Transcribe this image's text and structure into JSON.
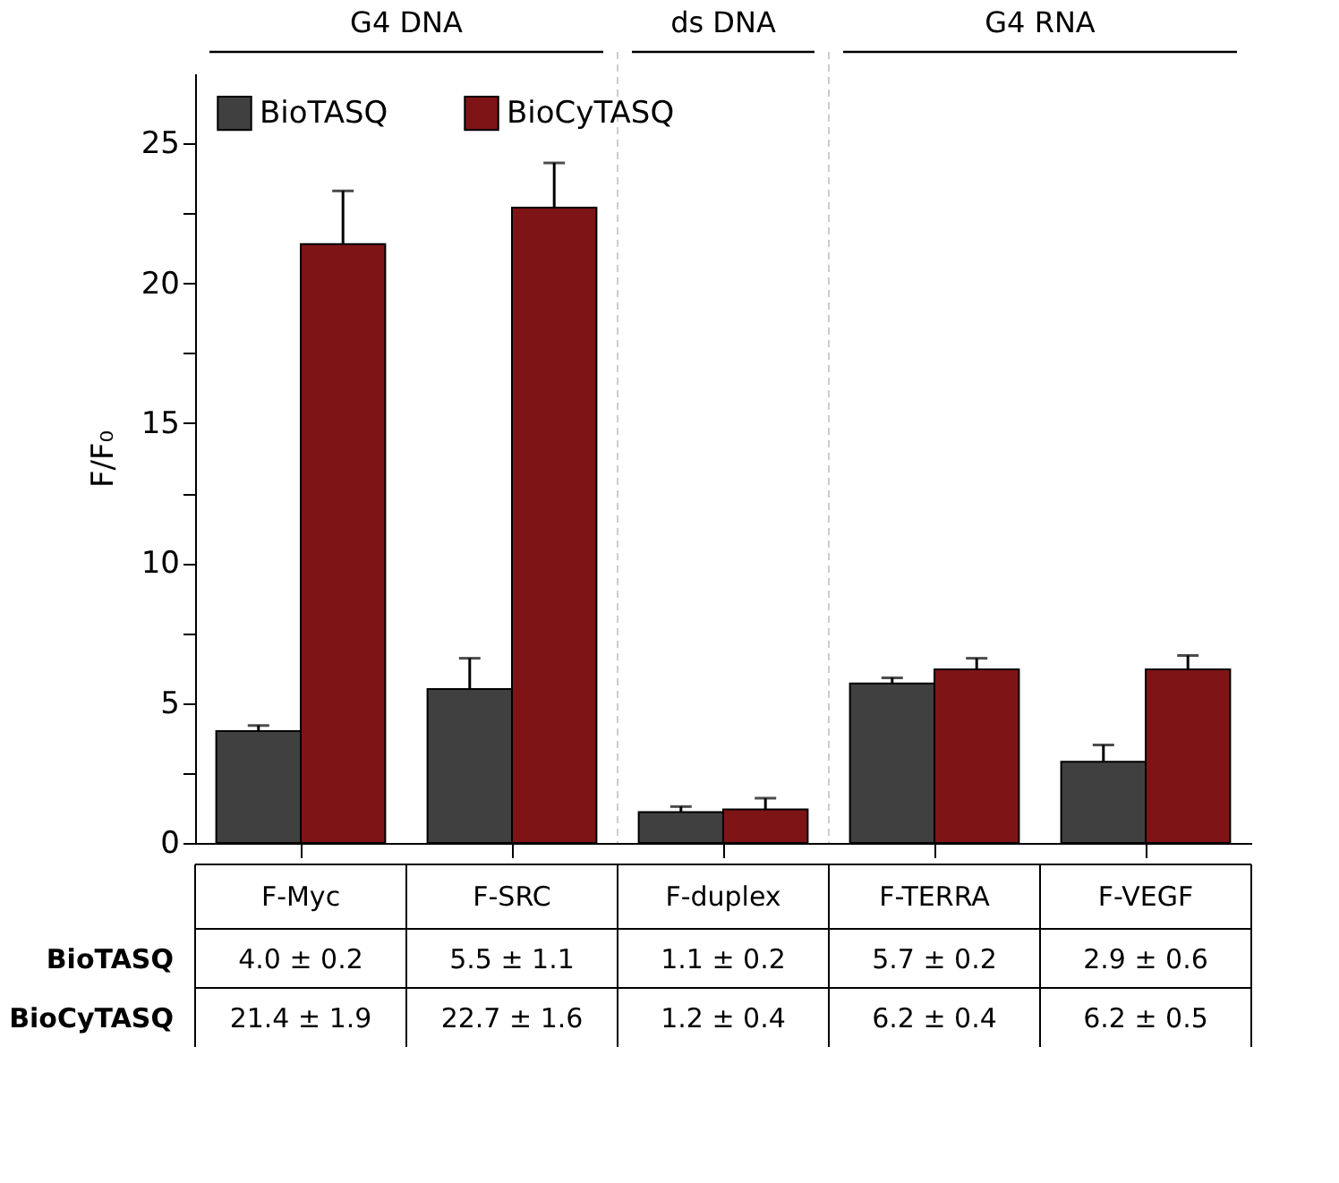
{
  "chart_data": {
    "type": "bar",
    "ylabel": "F/F₀",
    "categories": [
      "F-Myc",
      "F-SRC",
      "F-duplex",
      "F-TERRA",
      "F-VEGF"
    ],
    "series": [
      {
        "name": "BioTASQ",
        "color": "#404040",
        "values": [
          4.0,
          5.5,
          1.1,
          5.7,
          2.9
        ],
        "errors": [
          0.2,
          1.1,
          0.2,
          0.2,
          0.6
        ],
        "value_labels": [
          "4.0 ± 0.2",
          "5.5 ± 1.1",
          "1.1 ± 0.2",
          "5.7 ± 0.2",
          "2.9 ± 0.6"
        ]
      },
      {
        "name": "BioCyTASQ",
        "color": "#7f1416",
        "values": [
          21.4,
          22.7,
          1.2,
          6.2,
          6.2
        ],
        "errors": [
          1.9,
          1.6,
          0.4,
          0.4,
          0.5
        ],
        "value_labels": [
          "21.4 ± 1.9",
          "22.7 ± 1.6",
          "1.2 ± 0.4",
          "6.2 ± 0.4",
          "6.2 ± 0.5"
        ]
      }
    ],
    "annotations": [
      "G4 DNA",
      "ds DNA",
      "G4 RNA"
    ],
    "ylim": [
      0,
      27.5
    ],
    "yticks": [
      0,
      {
        "value": 2.5,
        "label": null
      },
      5,
      {
        "value": 7.5,
        "label": null
      },
      10,
      {
        "value": 12.5,
        "label": null
      },
      15,
      {
        "value": 17.5,
        "label": null
      },
      20,
      {
        "value": 22.5,
        "label": null
      },
      25
    ],
    "grid": false,
    "legend": "top left"
  }
}
